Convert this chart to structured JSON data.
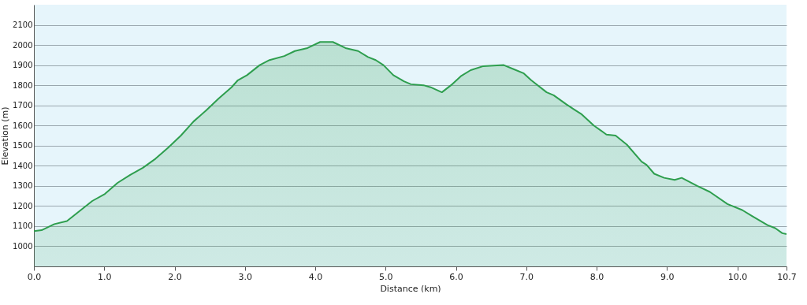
{
  "chart_data": {
    "type": "area",
    "xlabel": "Distance  (km)",
    "ylabel": "Elevation (m)",
    "xlim": [
      0,
      10.7
    ],
    "ylim": [
      900,
      2200
    ],
    "xticks": [
      {
        "value": 0,
        "label": "0.0"
      },
      {
        "value": 1,
        "label": "1.0"
      },
      {
        "value": 2,
        "label": "2.0"
      },
      {
        "value": 3,
        "label": "3.0"
      },
      {
        "value": 4,
        "label": "4.0"
      },
      {
        "value": 5,
        "label": "5.0"
      },
      {
        "value": 6,
        "label": "6.0"
      },
      {
        "value": 7,
        "label": "7.0"
      },
      {
        "value": 8,
        "label": "8.0"
      },
      {
        "value": 9,
        "label": "9.0"
      },
      {
        "value": 10,
        "label": "10.0"
      },
      10.7
    ],
    "yticks": [
      1000,
      1100,
      1200,
      1300,
      1400,
      1500,
      1600,
      1700,
      1800,
      1900,
      2000,
      2100
    ],
    "grid": "y",
    "x": [
      0,
      0.11,
      0.29,
      0.47,
      0.65,
      0.83,
      1.01,
      1.19,
      1.37,
      1.55,
      1.73,
      1.91,
      2.09,
      2.27,
      2.45,
      2.63,
      2.81,
      2.9,
      3.03,
      3.21,
      3.35,
      3.56,
      3.71,
      3.89,
      4.07,
      4.25,
      4.43,
      4.61,
      4.75,
      4.86,
      4.97,
      5.11,
      5.26,
      5.36,
      5.54,
      5.64,
      5.8,
      5.93,
      6.07,
      6.21,
      6.39,
      6.68,
      6.82,
      6.96,
      7.07,
      7.29,
      7.39,
      7.57,
      7.68,
      7.79,
      7.96,
      8.14,
      8.27,
      8.43,
      8.64,
      8.71,
      8.82,
      8.96,
      9.11,
      9.21,
      9.43,
      9.61,
      9.86,
      10.07,
      10.21,
      10.43,
      10.54,
      10.64,
      10.7
    ],
    "series": [
      {
        "color": "#2e9e4e",
        "values": [
          1075,
          1080,
          1110,
          1125,
          1175,
          1225,
          1260,
          1315,
          1355,
          1390,
          1435,
          1490,
          1550,
          1620,
          1675,
          1735,
          1790,
          1825,
          1850,
          1900,
          1925,
          1945,
          1970,
          1985,
          2015,
          2015,
          1985,
          1970,
          1940,
          1925,
          1900,
          1850,
          1820,
          1805,
          1800,
          1790,
          1765,
          1800,
          1845,
          1875,
          1895,
          1900,
          1880,
          1860,
          1825,
          1765,
          1750,
          1705,
          1680,
          1655,
          1600,
          1555,
          1550,
          1505,
          1420,
          1405,
          1360,
          1340,
          1330,
          1340,
          1300,
          1270,
          1210,
          1180,
          1150,
          1105,
          1090,
          1065,
          1060
        ]
      }
    ]
  }
}
